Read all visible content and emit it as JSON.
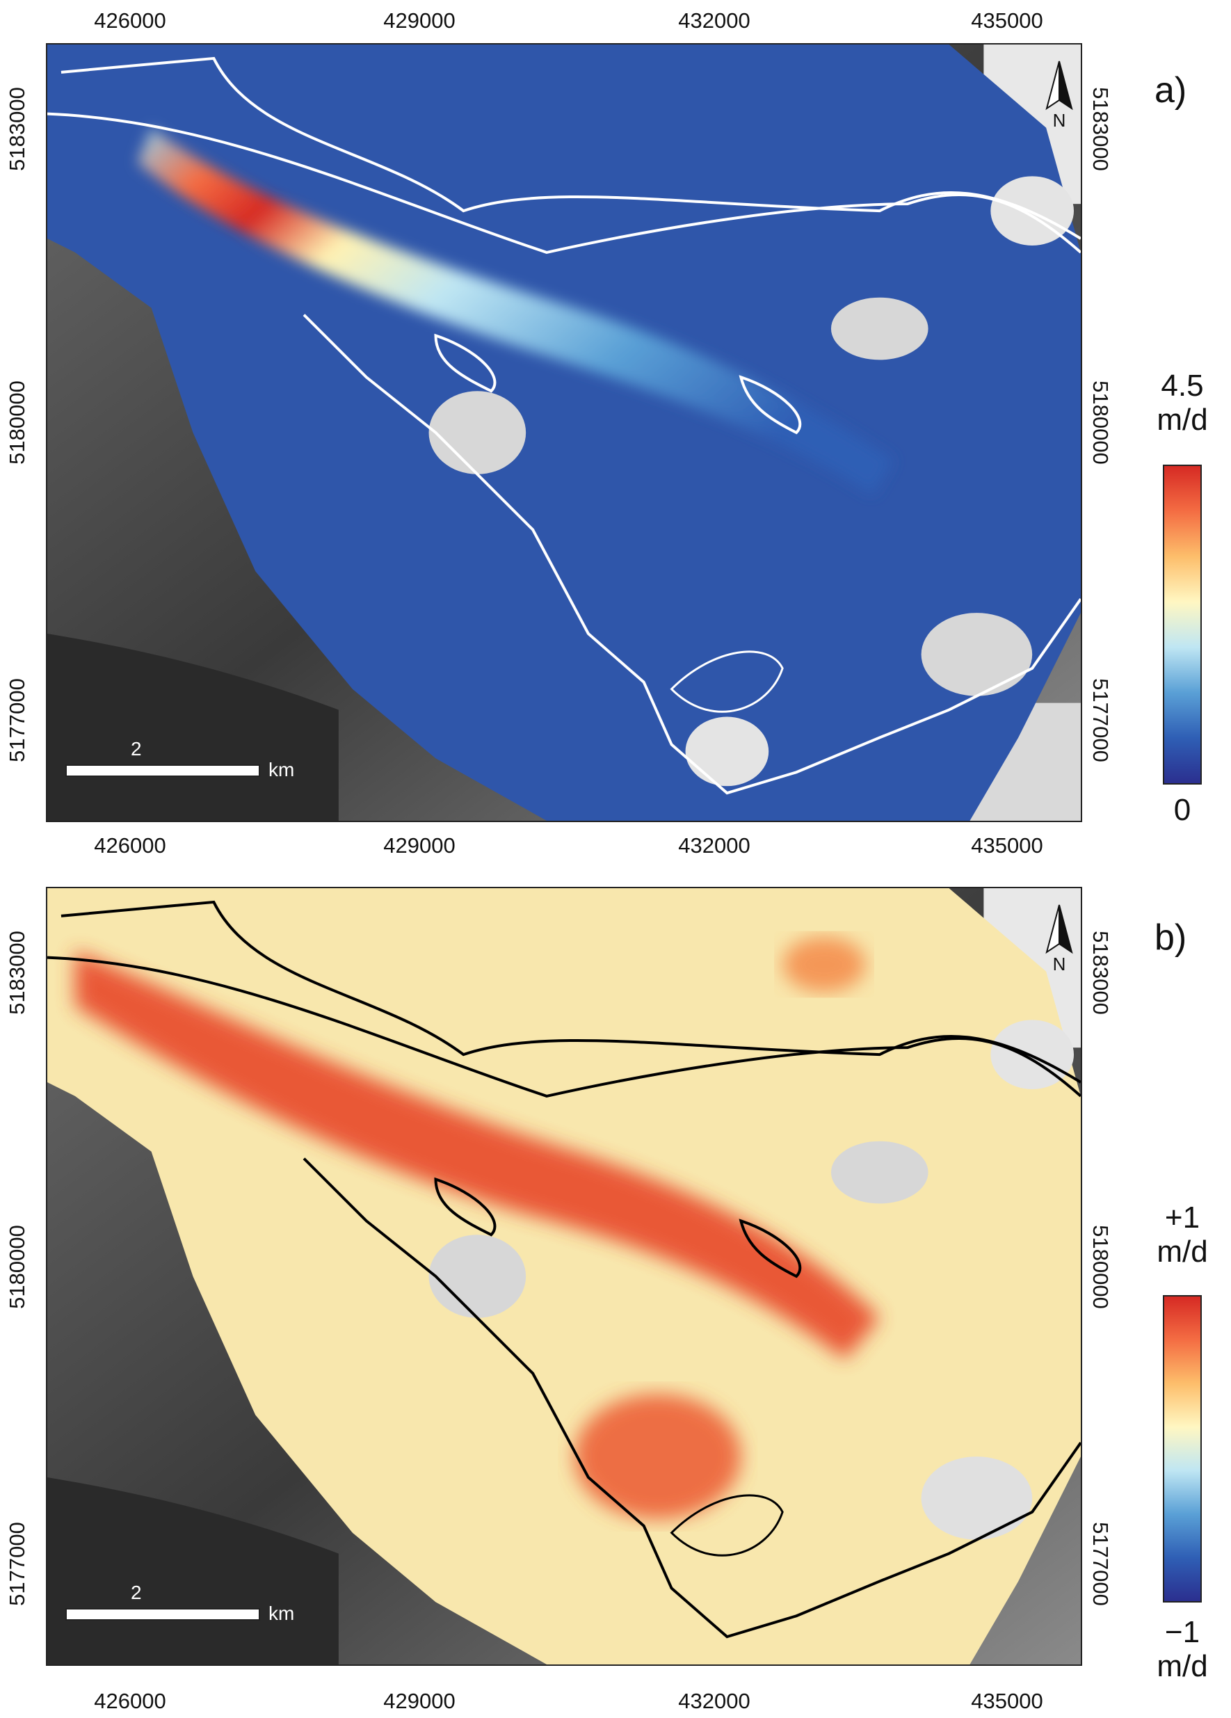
{
  "x_ticks": [
    "426000",
    "429000",
    "432000",
    "435000"
  ],
  "y_ticks": [
    "5183000",
    "5180000",
    "5177000"
  ],
  "panels": [
    {
      "label": "a)",
      "cbar_max": "4.5",
      "cbar_unit_top": "m/d",
      "cbar_min": "0",
      "cbar_unit_bottom": "",
      "outline_color": "#ffffff",
      "colormap": [
        "#2b2f8f",
        "#2f5fb5",
        "#5aa0d6",
        "#bfe6f3",
        "#fff7c2",
        "#fdbe6b",
        "#f46d43",
        "#d62a24"
      ]
    },
    {
      "label": "b)",
      "cbar_max": "+1",
      "cbar_unit_top": "m/d",
      "cbar_min": "−1",
      "cbar_unit_bottom": "m/d",
      "outline_color": "#000000",
      "colormap": [
        "#2b2f8f",
        "#2f5fb5",
        "#5aa0d6",
        "#bfe6f3",
        "#fff7c2",
        "#fdbe6b",
        "#f46d43",
        "#d62a24"
      ]
    }
  ],
  "scalebar": {
    "number": "2",
    "unit": "km"
  },
  "north_arrow": {
    "icon": "north-arrow-icon",
    "label": "N"
  }
}
